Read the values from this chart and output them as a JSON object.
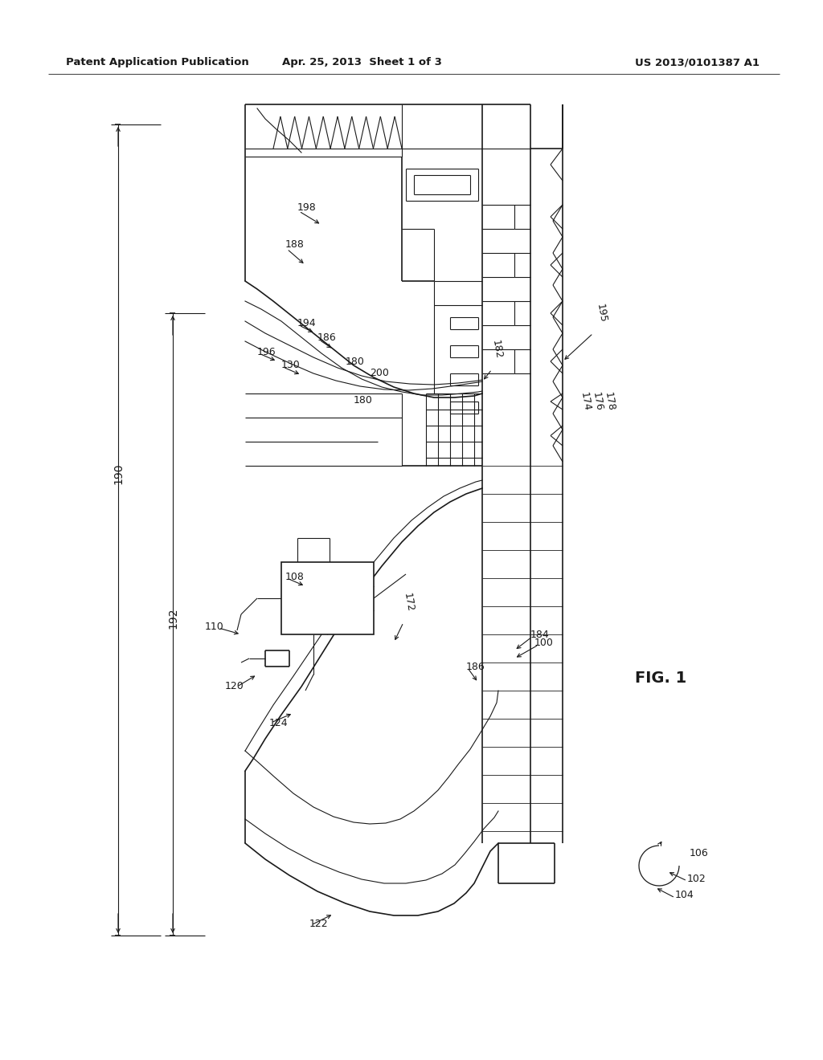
{
  "bg_color": "#ffffff",
  "header_left": "Patent Application Publication",
  "header_mid": "Apr. 25, 2013  Sheet 1 of 3",
  "header_right": "US 2013/0101387 A1",
  "fig_label": "FIG. 1",
  "color": "#1a1a1a"
}
